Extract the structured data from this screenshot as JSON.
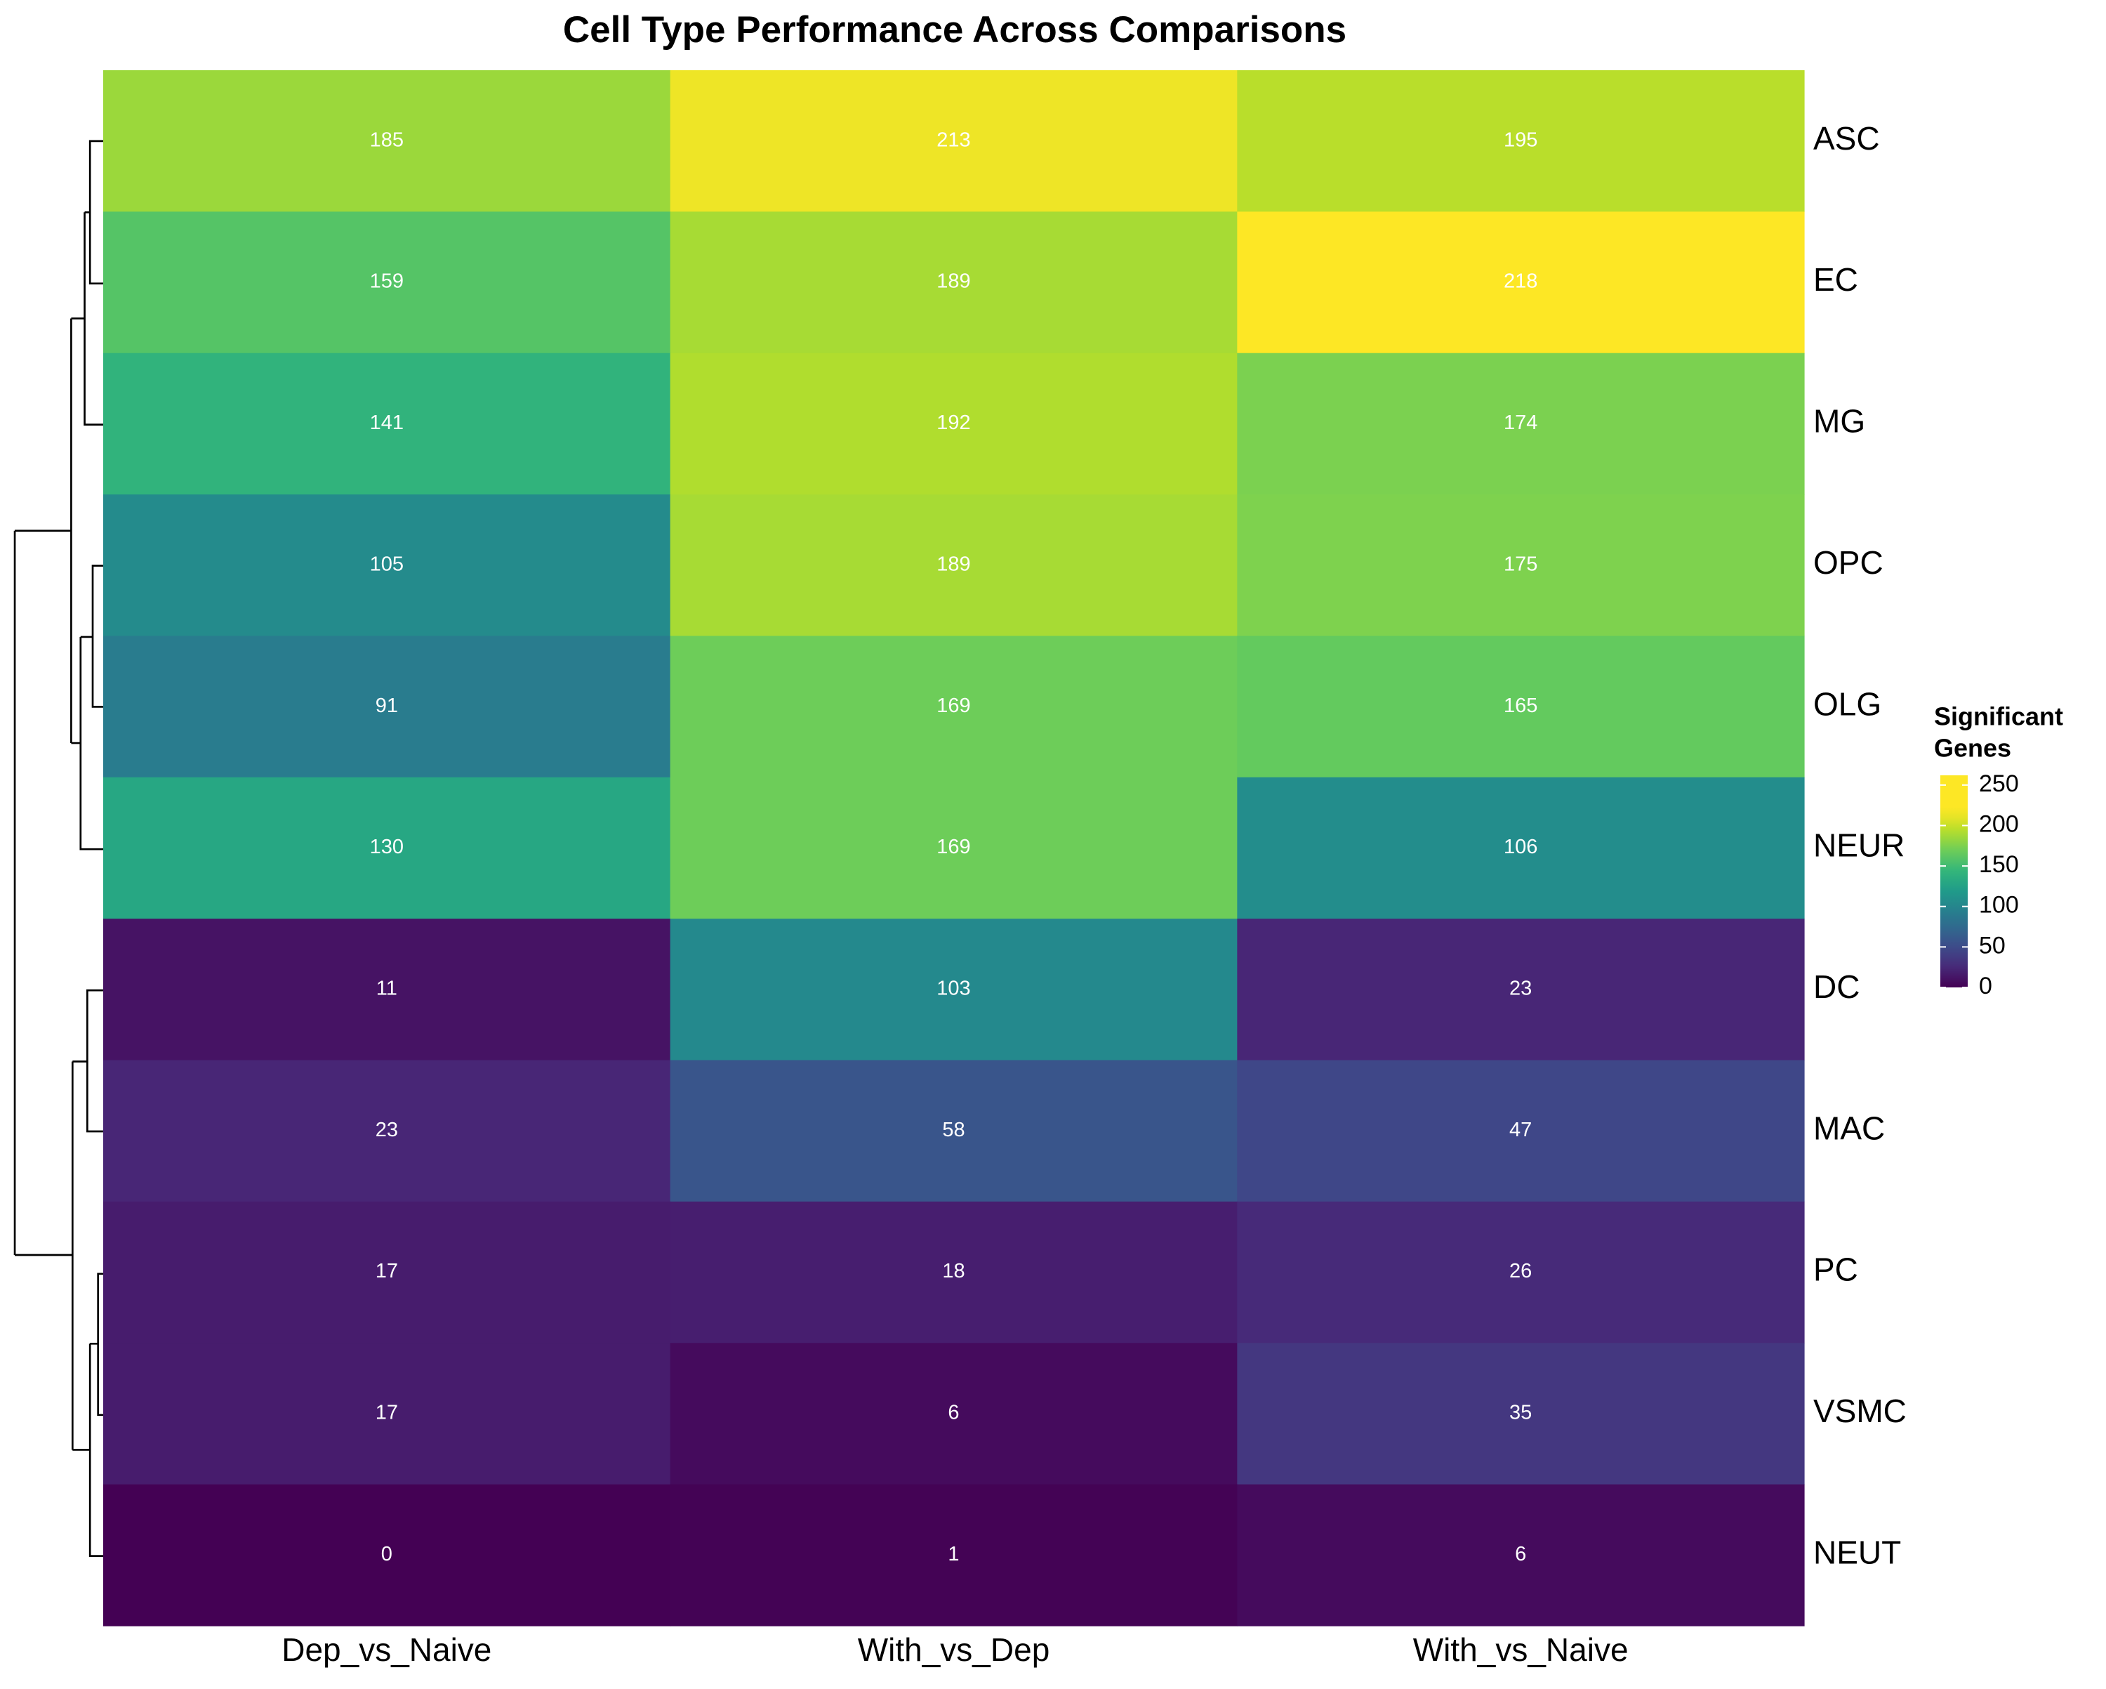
{
  "chart_data": {
    "type": "heatmap",
    "title": "Cell Type Performance Across Comparisons",
    "rows": [
      "ASC",
      "EC",
      "MG",
      "OPC",
      "OLG",
      "NEUR",
      "DC",
      "MAC",
      "PC",
      "VSMC",
      "NEUT"
    ],
    "columns": [
      "Dep_vs_Naive",
      "With_vs_Dep",
      "With_vs_Naive"
    ],
    "values": [
      [
        185,
        213,
        195
      ],
      [
        159,
        189,
        218
      ],
      [
        141,
        192,
        174
      ],
      [
        105,
        189,
        175
      ],
      [
        91,
        169,
        165
      ],
      [
        130,
        169,
        106
      ],
      [
        11,
        103,
        23
      ],
      [
        23,
        58,
        47
      ],
      [
        17,
        18,
        26
      ],
      [
        17,
        6,
        35
      ],
      [
        0,
        1,
        6
      ]
    ],
    "colormap": "viridis",
    "clim": [
      0,
      218
    ],
    "colorbar_title": [
      "Significant",
      "Genes"
    ],
    "colorbar_lim": [
      0,
      262
    ],
    "colorbar_ticks": [
      0,
      50,
      100,
      150,
      200,
      250
    ]
  }
}
